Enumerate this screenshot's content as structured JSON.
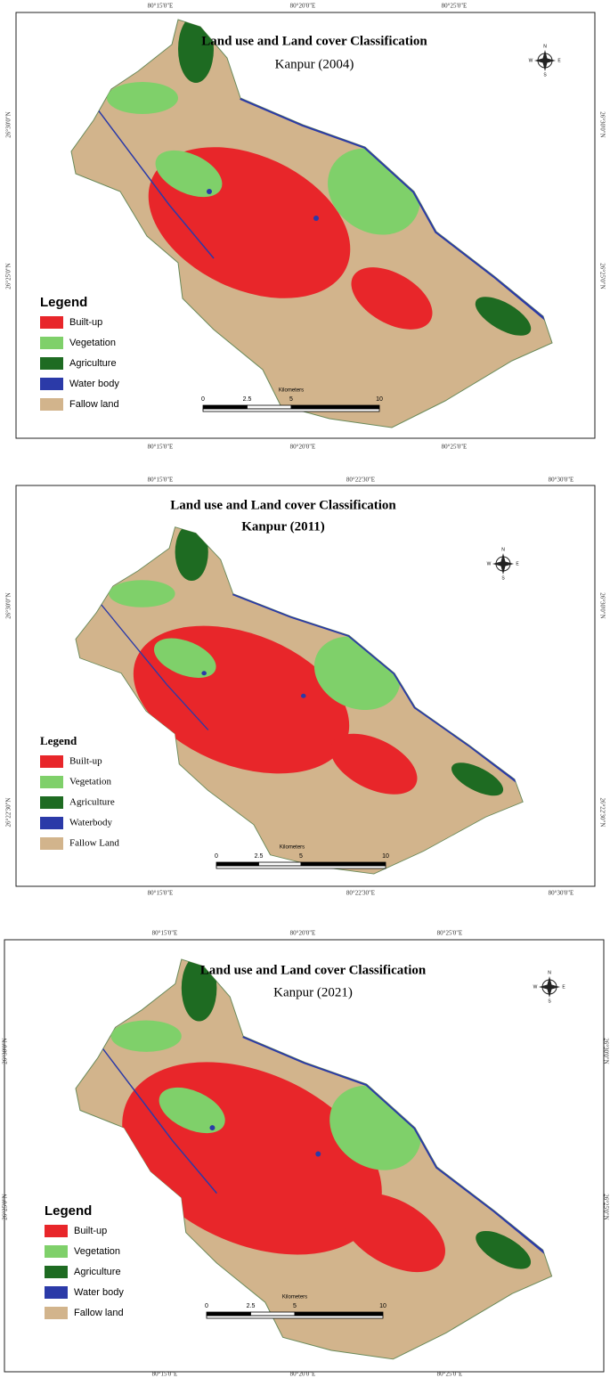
{
  "maps": [
    {
      "title": "Land use and Land cover Classification",
      "subtitle": "Kanpur (2004)",
      "top_labels": [
        "80°15'0\"E",
        "80°20'0\"E",
        "80°25'0\"E"
      ],
      "bottom_labels": [
        "80°15'0\"E",
        "80°20'0\"E",
        "80°25'0\"E"
      ],
      "left_labels": [
        "26°30'0\"N",
        "26°25'0\"N"
      ],
      "right_labels": [
        "26°30'0\"N",
        "26°25'0\"N"
      ],
      "legend": {
        "title": "Legend",
        "items": [
          "Built-up",
          "Vegetation",
          "Agriculture",
          "Water body",
          "Fallow land"
        ]
      },
      "scale": {
        "unit": "Kilometers",
        "labels": [
          "0",
          "2.5",
          "5",
          "10"
        ]
      },
      "compass": [
        "N",
        "E",
        "S",
        "W"
      ]
    },
    {
      "title": "Land use and Land cover Classification",
      "subtitle": "Kanpur (2011)",
      "top_labels": [
        "80°15'0\"E",
        "80°22'30\"E",
        "80°30'0\"E"
      ],
      "bottom_labels": [
        "80°15'0\"E",
        "80°22'30\"E",
        "80°30'0\"E"
      ],
      "left_labels": [
        "26°30'0\"N",
        "26°22'30\"N"
      ],
      "right_labels": [
        "26°30'0\"N",
        "26°22'30\"N"
      ],
      "legend": {
        "title": "Legend",
        "items": [
          "Built-up",
          "Vegetation",
          "Agriculture",
          "Waterbody",
          "Fallow Land"
        ]
      },
      "scale": {
        "unit": "Kilometers",
        "labels": [
          "0",
          "2.5",
          "5",
          "10"
        ]
      },
      "compass": [
        "N",
        "E",
        "S",
        "W"
      ]
    },
    {
      "title": "Land use and Land cover Classification",
      "subtitle": "Kanpur (2021)",
      "top_labels": [
        "80°15'0\"E",
        "80°20'0\"E",
        "80°25'0\"E"
      ],
      "bottom_labels": [
        "80°15'0\"E",
        "80°20'0\"E",
        "80°25'0\"E"
      ],
      "left_labels": [
        "26°30'0\"N",
        "26°25'0\"N"
      ],
      "right_labels": [
        "26°30'0\"N",
        "26°25'0\"N"
      ],
      "legend": {
        "title": "Legend",
        "items": [
          "Built-up",
          "Vegetation",
          "Agriculture",
          "Water body",
          "Fallow land"
        ]
      },
      "scale": {
        "unit": "Kilometers",
        "labels": [
          "0",
          "2.5",
          "5",
          "10"
        ]
      },
      "compass": [
        "N",
        "E",
        "S",
        "W"
      ]
    }
  ]
}
